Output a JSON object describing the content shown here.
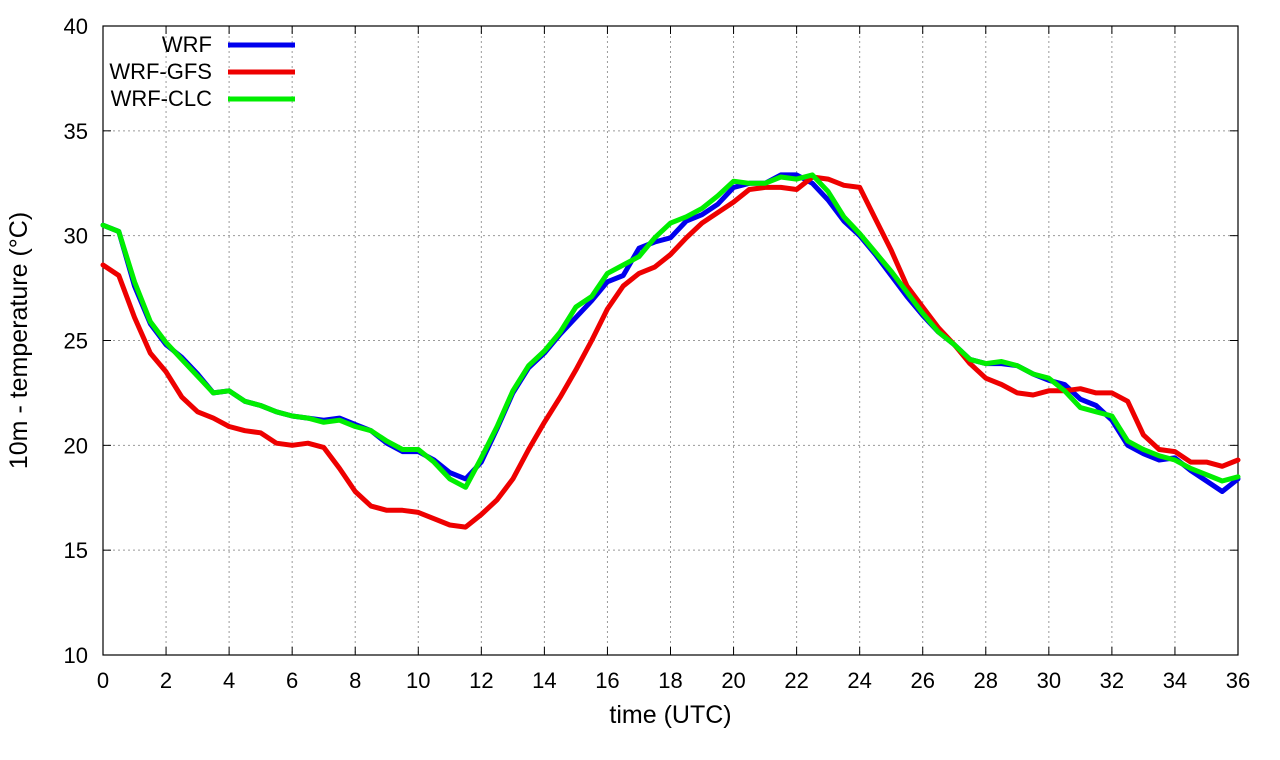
{
  "chart_data": {
    "type": "line",
    "xlabel": "time (UTC)",
    "ylabel": "10m - temperature (°C)",
    "xlim": [
      0,
      36
    ],
    "ylim": [
      10,
      40
    ],
    "xticks": [
      0,
      2,
      4,
      6,
      8,
      10,
      12,
      14,
      16,
      18,
      20,
      22,
      24,
      26,
      28,
      30,
      32,
      34,
      36
    ],
    "yticks": [
      10,
      15,
      20,
      25,
      30,
      35,
      40
    ],
    "grid": true,
    "legend_position": "top-left",
    "x": [
      0,
      0.5,
      1,
      1.5,
      2,
      2.5,
      3,
      3.5,
      4,
      4.5,
      5,
      5.5,
      6,
      6.5,
      7,
      7.5,
      8,
      8.5,
      9,
      9.5,
      10,
      10.5,
      11,
      11.5,
      12,
      12.5,
      13,
      13.5,
      14,
      14.5,
      15,
      15.5,
      16,
      16.5,
      17,
      17.5,
      18,
      18.5,
      19,
      19.5,
      20,
      20.5,
      21,
      21.5,
      22,
      22.5,
      23,
      23.5,
      24,
      24.5,
      25,
      25.5,
      26,
      26.5,
      27,
      27.5,
      28,
      28.5,
      29,
      29.5,
      30,
      30.5,
      31,
      31.5,
      32,
      32.5,
      33,
      33.5,
      34,
      34.5,
      35,
      35.5,
      36
    ],
    "series": [
      {
        "name": "WRF",
        "color": "#0000ee",
        "values": [
          30.5,
          30.2,
          27.6,
          25.8,
          24.8,
          24.2,
          23.4,
          22.5,
          22.6,
          22.1,
          21.9,
          21.6,
          21.4,
          21.3,
          21.2,
          21.3,
          21.0,
          20.7,
          20.1,
          19.7,
          19.7,
          19.3,
          18.7,
          18.4,
          19.2,
          20.8,
          22.5,
          23.7,
          24.4,
          25.3,
          26.1,
          26.9,
          27.8,
          28.1,
          29.4,
          29.7,
          29.9,
          30.7,
          31.0,
          31.5,
          32.3,
          32.5,
          32.5,
          32.9,
          32.9,
          32.5,
          31.7,
          30.7,
          30.0,
          29.1,
          28.1,
          27.1,
          26.2,
          25.4,
          24.8,
          24.1,
          23.9,
          23.9,
          23.8,
          23.4,
          23.1,
          22.9,
          22.2,
          21.9,
          21.2,
          20.0,
          19.6,
          19.3,
          19.4,
          18.8,
          18.3,
          17.8,
          18.4
        ]
      },
      {
        "name": "WRF-GFS",
        "color": "#ee0000",
        "values": [
          28.6,
          28.1,
          26.1,
          24.4,
          23.5,
          22.3,
          21.6,
          21.3,
          20.9,
          20.7,
          20.6,
          20.1,
          20.0,
          20.1,
          19.9,
          18.9,
          17.8,
          17.1,
          16.9,
          16.9,
          16.8,
          16.5,
          16.2,
          16.1,
          16.7,
          17.4,
          18.4,
          19.8,
          21.1,
          22.3,
          23.6,
          25.0,
          26.5,
          27.6,
          28.2,
          28.5,
          29.1,
          29.9,
          30.6,
          31.1,
          31.6,
          32.2,
          32.3,
          32.3,
          32.2,
          32.8,
          32.7,
          32.4,
          32.3,
          30.8,
          29.3,
          27.6,
          26.6,
          25.6,
          24.8,
          23.9,
          23.2,
          22.9,
          22.5,
          22.4,
          22.6,
          22.6,
          22.7,
          22.5,
          22.5,
          22.1,
          20.5,
          19.8,
          19.7,
          19.2,
          19.2,
          19.0,
          19.3
        ]
      },
      {
        "name": "WRF-CLC",
        "color": "#00ee00",
        "values": [
          30.5,
          30.2,
          27.8,
          25.9,
          24.9,
          24.1,
          23.3,
          22.5,
          22.6,
          22.1,
          21.9,
          21.6,
          21.4,
          21.3,
          21.1,
          21.2,
          20.9,
          20.7,
          20.2,
          19.8,
          19.8,
          19.2,
          18.4,
          18.0,
          19.4,
          20.9,
          22.6,
          23.8,
          24.5,
          25.4,
          26.6,
          27.1,
          28.2,
          28.6,
          29.0,
          29.9,
          30.6,
          30.9,
          31.3,
          31.9,
          32.6,
          32.5,
          32.5,
          32.8,
          32.7,
          32.9,
          32.1,
          30.9,
          30.1,
          29.2,
          28.3,
          27.3,
          26.3,
          25.4,
          24.8,
          24.1,
          23.9,
          24.0,
          23.8,
          23.4,
          23.2,
          22.6,
          21.8,
          21.6,
          21.4,
          20.2,
          19.8,
          19.5,
          19.3,
          18.9,
          18.6,
          18.3,
          18.5
        ]
      }
    ]
  }
}
